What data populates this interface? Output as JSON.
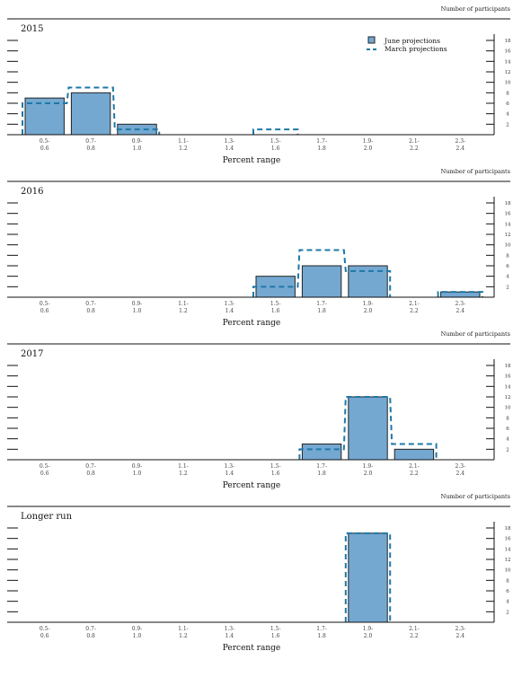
{
  "units_label": "Number of participants",
  "legend": {
    "june": "June projections",
    "march": "March projections"
  },
  "colors": {
    "june_fill": "#74A8D1",
    "june_stroke": "#222222",
    "march_stroke": "#1E78A8",
    "axis": "#111111"
  },
  "chart_data": [
    {
      "type": "bar",
      "title": "2015",
      "xlabel": "Percent range",
      "ylabel": "Number of participants",
      "categories": [
        [
          "0.5-",
          "0.6"
        ],
        [
          "0.7-",
          "0.8"
        ],
        [
          "0.9-",
          "1.0"
        ],
        [
          "1.1-",
          "1.2"
        ],
        [
          "1.3-",
          "1.4"
        ],
        [
          "1.5-",
          "1.6"
        ],
        [
          "1.7-",
          "1.8"
        ],
        [
          "1.9-",
          "2.0"
        ],
        [
          "2.1-",
          "2.2"
        ],
        [
          "2.3-",
          "2.4"
        ]
      ],
      "yticks": [
        2,
        4,
        6,
        8,
        10,
        12,
        14,
        16,
        18
      ],
      "ylim": [
        0,
        18
      ],
      "show_legend": true,
      "series": [
        {
          "name": "June projections",
          "style": "bar",
          "values": [
            7,
            8,
            2,
            0,
            0,
            0,
            0,
            0,
            0,
            0
          ]
        },
        {
          "name": "March projections",
          "style": "dashed-outline",
          "values": [
            6,
            9,
            1,
            0,
            0,
            1,
            0,
            0,
            0,
            0
          ]
        }
      ]
    },
    {
      "type": "bar",
      "title": "2016",
      "xlabel": "Percent range",
      "ylabel": "Number of participants",
      "categories": [
        [
          "0.5-",
          "0.6"
        ],
        [
          "0.7-",
          "0.8"
        ],
        [
          "0.9-",
          "1.0"
        ],
        [
          "1.1-",
          "1.2"
        ],
        [
          "1.3-",
          "1.4"
        ],
        [
          "1.5-",
          "1.6"
        ],
        [
          "1.7-",
          "1.8"
        ],
        [
          "1.9-",
          "2.0"
        ],
        [
          "2.1-",
          "2.2"
        ],
        [
          "2.3-",
          "2.4"
        ]
      ],
      "yticks": [
        2,
        4,
        6,
        8,
        10,
        12,
        14,
        16,
        18
      ],
      "ylim": [
        0,
        18
      ],
      "show_legend": false,
      "series": [
        {
          "name": "June projections",
          "style": "bar",
          "values": [
            0,
            0,
            0,
            0,
            0,
            4,
            6,
            6,
            0,
            1
          ]
        },
        {
          "name": "March projections",
          "style": "dashed-outline",
          "values": [
            0,
            0,
            0,
            0,
            0,
            2,
            9,
            5,
            0,
            1
          ]
        }
      ]
    },
    {
      "type": "bar",
      "title": "2017",
      "xlabel": "Percent range",
      "ylabel": "Number of participants",
      "categories": [
        [
          "0.5-",
          "0.6"
        ],
        [
          "0.7-",
          "0.8"
        ],
        [
          "0.9-",
          "1.0"
        ],
        [
          "1.1-",
          "1.2"
        ],
        [
          "1.3-",
          "1.4"
        ],
        [
          "1.5-",
          "1.6"
        ],
        [
          "1.7-",
          "1.8"
        ],
        [
          "1.9-",
          "2.0"
        ],
        [
          "2.1-",
          "2.2"
        ],
        [
          "2.3-",
          "2.4"
        ]
      ],
      "yticks": [
        2,
        4,
        6,
        8,
        10,
        12,
        14,
        16,
        18
      ],
      "ylim": [
        0,
        18
      ],
      "show_legend": false,
      "series": [
        {
          "name": "June projections",
          "style": "bar",
          "values": [
            0,
            0,
            0,
            0,
            0,
            0,
            3,
            12,
            2,
            0
          ]
        },
        {
          "name": "March projections",
          "style": "dashed-outline",
          "values": [
            0,
            0,
            0,
            0,
            0,
            0,
            2,
            12,
            3,
            0
          ]
        }
      ]
    },
    {
      "type": "bar",
      "title": "Longer run",
      "xlabel": "Percent range",
      "ylabel": "Number of participants",
      "categories": [
        [
          "0.5-",
          "0.6"
        ],
        [
          "0.7-",
          "0.8"
        ],
        [
          "0.9-",
          "1.0"
        ],
        [
          "1.1-",
          "1.2"
        ],
        [
          "1.3-",
          "1.4"
        ],
        [
          "1.5-",
          "1.6"
        ],
        [
          "1.7-",
          "1.8"
        ],
        [
          "1.9-",
          "2.0"
        ],
        [
          "2.1-",
          "2.2"
        ],
        [
          "2.3-",
          "2.4"
        ]
      ],
      "yticks": [
        2,
        4,
        6,
        8,
        10,
        12,
        14,
        16,
        18
      ],
      "ylim": [
        0,
        18
      ],
      "show_legend": false,
      "series": [
        {
          "name": "June projections",
          "style": "bar",
          "values": [
            0,
            0,
            0,
            0,
            0,
            0,
            0,
            17,
            0,
            0
          ]
        },
        {
          "name": "March projections",
          "style": "dashed-outline",
          "values": [
            0,
            0,
            0,
            0,
            0,
            0,
            0,
            17,
            0,
            0
          ]
        }
      ]
    }
  ]
}
